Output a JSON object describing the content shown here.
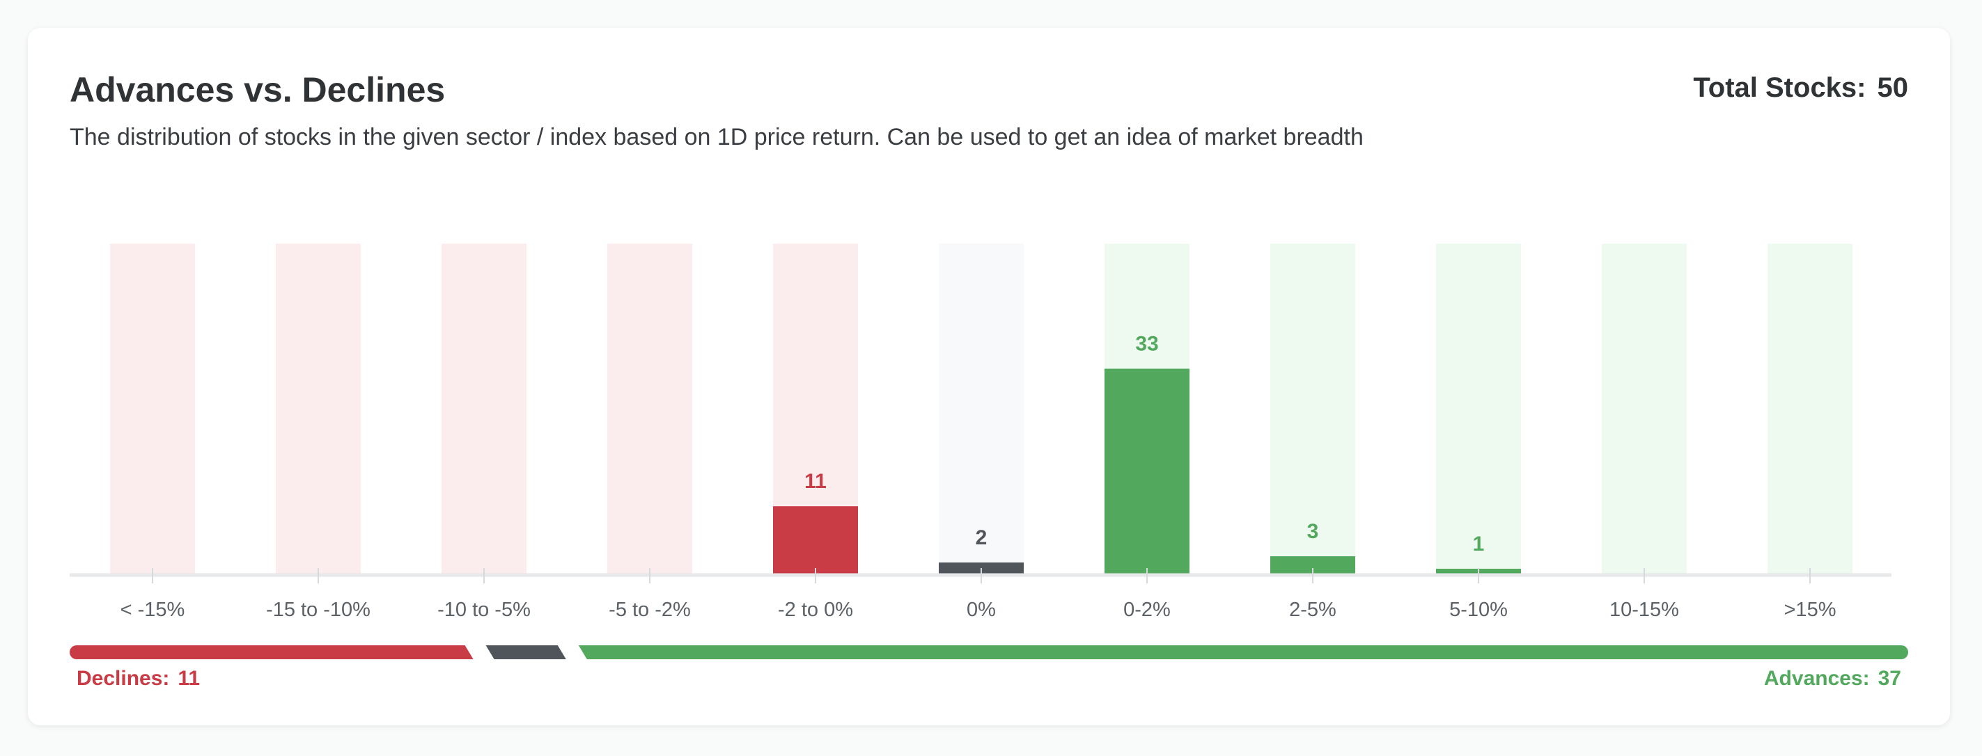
{
  "header": {
    "title": "Advances vs. Declines",
    "subtitle": "The distribution of stocks in the given sector / index based on 1D price return. Can be used to get an idea of market breadth",
    "total_label": "Total Stocks:",
    "total_value": "50"
  },
  "chart_data": {
    "type": "bar",
    "categories": [
      "< -15%",
      "-15 to -10%",
      "-10 to -5%",
      "-5 to -2%",
      "-2 to 0%",
      "0%",
      "0-2%",
      "2-5%",
      "5-10%",
      "10-15%",
      ">15%"
    ],
    "values": [
      0,
      0,
      0,
      0,
      11,
      2,
      33,
      3,
      1,
      0,
      0
    ],
    "groups": [
      "decline",
      "decline",
      "decline",
      "decline",
      "decline",
      "neutral",
      "advance",
      "advance",
      "advance",
      "advance",
      "advance"
    ],
    "ylim": [
      0,
      53
    ],
    "xlabel": "",
    "ylabel": "",
    "title": "",
    "colors": {
      "decline": "#c93c45",
      "decline_bg": "#fbeced",
      "neutral": "#50555b",
      "neutral_bg": "#f8f9fb",
      "advance": "#52a95d",
      "advance_bg": "#eef9f0"
    }
  },
  "breadth": {
    "declines_label": "Declines:",
    "declines_value": "11",
    "neutral_value": 2,
    "advances_label": "Advances:",
    "advances_value": "37"
  }
}
